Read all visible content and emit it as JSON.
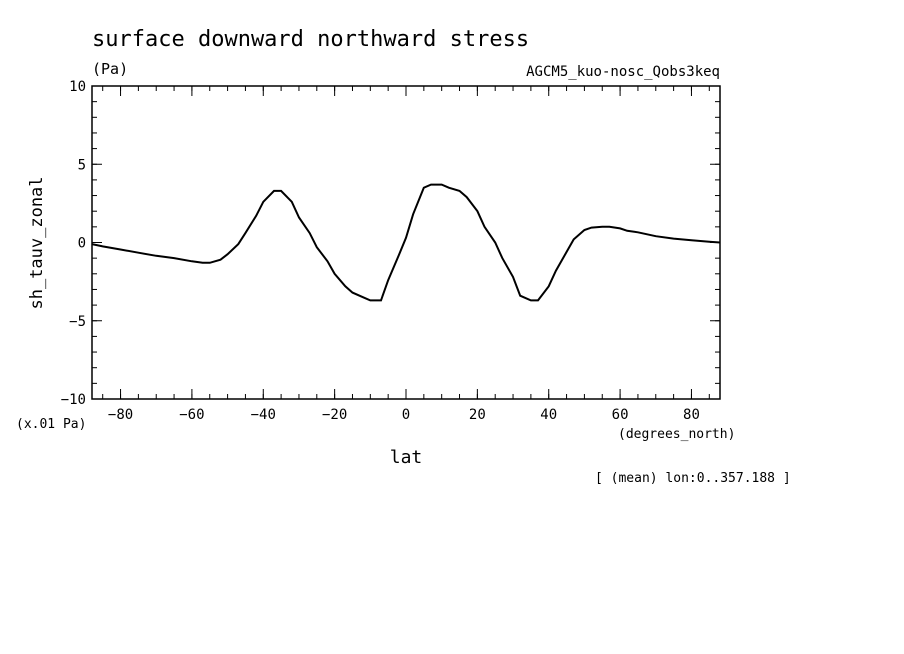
{
  "chart_data": {
    "type": "line",
    "title": "surface downward northward stress",
    "units": "(Pa)",
    "dataset": "AGCM5_kuo-nosc_Qobs3keq",
    "ylabel": "sh_tauv_zonal",
    "xlabel": "lat",
    "x_units": "(degrees_north)",
    "y_scale_note": "(x.01 Pa)",
    "footnote": "[ (mean) lon:0..357.188 ]",
    "xlim": [
      -88,
      88
    ],
    "ylim": [
      -10,
      10
    ],
    "x_ticks": [
      -80,
      -60,
      -40,
      -20,
      0,
      20,
      40,
      60,
      80
    ],
    "y_ticks": [
      -10,
      -5,
      0,
      5,
      10
    ],
    "x_ticks_labels": [
      "−80",
      "−60",
      "−40",
      "−20",
      "0",
      "20",
      "40",
      "60",
      "80"
    ],
    "y_ticks_labels": [
      "−10",
      "−5",
      "0",
      "5",
      "10"
    ],
    "x_minor_step": 5,
    "y_minor_step": 1,
    "series": [
      {
        "x": [
          -88,
          -85,
          -80,
          -75,
          -70,
          -65,
          -60,
          -57,
          -55,
          -52,
          -50,
          -47,
          -45,
          -42,
          -40,
          -37,
          -35,
          -32,
          -30,
          -27,
          -25,
          -22,
          -20,
          -17,
          -15,
          -12,
          -10,
          -7,
          -5,
          -2,
          0,
          2,
          5,
          7,
          10,
          12,
          15,
          17,
          20,
          22,
          25,
          27,
          30,
          32,
          35,
          37,
          40,
          42,
          45,
          47,
          50,
          52,
          55,
          57,
          60,
          62,
          65,
          70,
          75,
          80,
          85,
          88
        ],
        "y": [
          -0.1,
          -0.25,
          -0.45,
          -0.65,
          -0.85,
          -1.0,
          -1.2,
          -1.3,
          -1.3,
          -1.1,
          -0.75,
          -0.1,
          0.6,
          1.7,
          2.6,
          3.3,
          3.3,
          2.6,
          1.6,
          0.6,
          -0.3,
          -1.2,
          -2.0,
          -2.8,
          -3.2,
          -3.5,
          -3.7,
          -3.7,
          -2.4,
          -0.8,
          0.3,
          1.8,
          3.5,
          3.7,
          3.7,
          3.5,
          3.3,
          2.9,
          2.0,
          1.0,
          0.0,
          -1.0,
          -2.2,
          -3.4,
          -3.7,
          -3.7,
          -2.8,
          -1.8,
          -0.6,
          0.2,
          0.8,
          0.95,
          1.0,
          1.0,
          0.9,
          0.75,
          0.65,
          0.4,
          0.25,
          0.15,
          0.05,
          0.0
        ]
      }
    ]
  }
}
